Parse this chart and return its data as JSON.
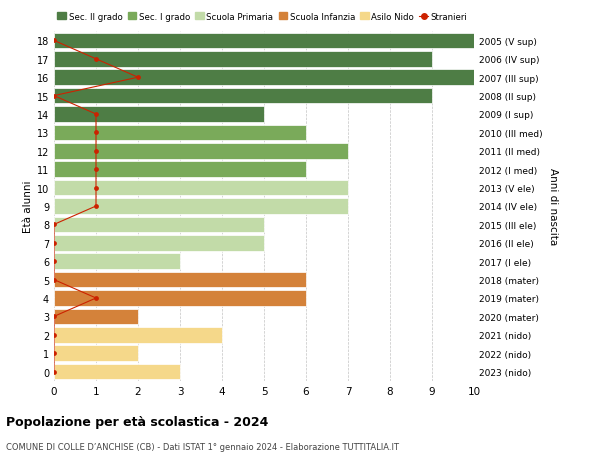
{
  "ages": [
    18,
    17,
    16,
    15,
    14,
    13,
    12,
    11,
    10,
    9,
    8,
    7,
    6,
    5,
    4,
    3,
    2,
    1,
    0
  ],
  "labels_right": [
    "2005 (V sup)",
    "2006 (IV sup)",
    "2007 (III sup)",
    "2008 (II sup)",
    "2009 (I sup)",
    "2010 (III med)",
    "2011 (II med)",
    "2012 (I med)",
    "2013 (V ele)",
    "2014 (IV ele)",
    "2015 (III ele)",
    "2016 (II ele)",
    "2017 (I ele)",
    "2018 (mater)",
    "2019 (mater)",
    "2020 (mater)",
    "2021 (nido)",
    "2022 (nido)",
    "2023 (nido)"
  ],
  "bar_values": [
    10,
    9,
    10,
    9,
    5,
    6,
    7,
    6,
    7,
    7,
    5,
    5,
    3,
    6,
    6,
    2,
    4,
    2,
    3
  ],
  "bar_colors": [
    "#4e7d45",
    "#4e7d45",
    "#4e7d45",
    "#4e7d45",
    "#4e7d45",
    "#7aaa5a",
    "#7aaa5a",
    "#7aaa5a",
    "#c2dba8",
    "#c2dba8",
    "#c2dba8",
    "#c2dba8",
    "#c2dba8",
    "#d4823a",
    "#d4823a",
    "#d4823a",
    "#f5d88a",
    "#f5d88a",
    "#f5d88a"
  ],
  "stranieri_values": [
    0,
    1,
    2,
    0,
    1,
    1,
    1,
    1,
    1,
    1,
    0,
    0,
    0,
    0,
    1,
    0,
    0,
    0,
    0
  ],
  "stranieri_ages": [
    18,
    17,
    16,
    15,
    14,
    13,
    12,
    11,
    10,
    9,
    8,
    7,
    6,
    5,
    4,
    3,
    2,
    1,
    0
  ],
  "color_sec2": "#4e7d45",
  "color_sec1": "#7aaa5a",
  "color_primaria": "#c2dba8",
  "color_infanzia": "#d4823a",
  "color_nido": "#f5d88a",
  "color_stranieri": "#cc2200",
  "title": "Popolazione per età scolastica - 2024",
  "subtitle": "COMUNE DI COLLE D’ANCHISE (CB) - Dati ISTAT 1° gennaio 2024 - Elaborazione TUTTITALIA.IT",
  "ylabel": "Età alunni",
  "ylabel_right": "Anni di nascita",
  "bg_color": "#ffffff",
  "legend_labels": [
    "Sec. II grado",
    "Sec. I grado",
    "Scuola Primaria",
    "Scuola Infanzia",
    "Asilo Nido",
    "Stranieri"
  ]
}
